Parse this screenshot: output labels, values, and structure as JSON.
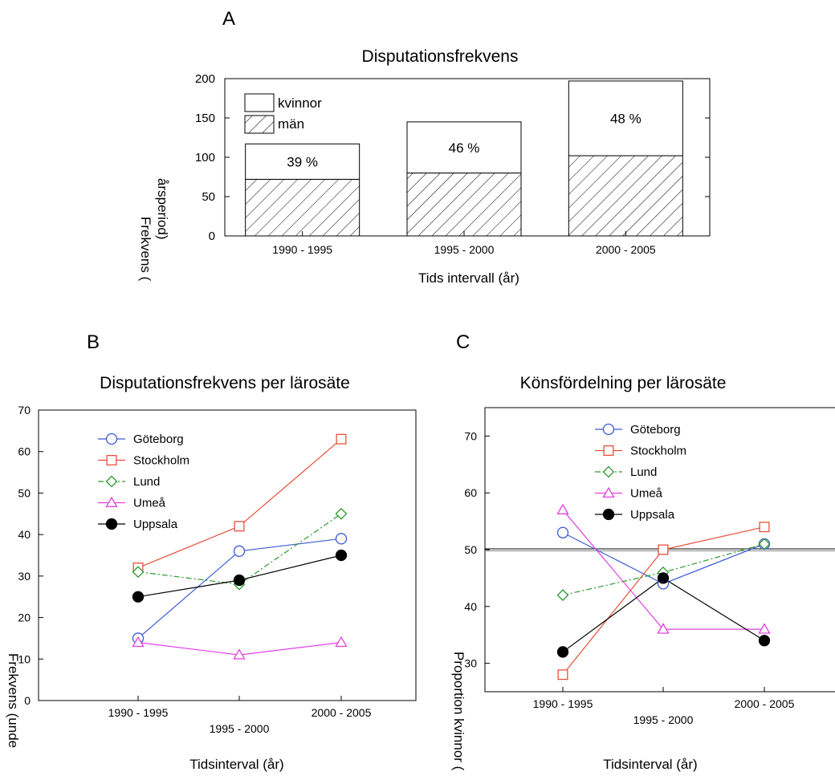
{
  "panel_labels": {
    "a": "A",
    "b": "B",
    "c": "C"
  },
  "chart_data": [
    {
      "type": "bar",
      "stacked": true,
      "title": "Disputationsfrekvens",
      "xlabel": "Tids intervall (år)",
      "ylabel": "Frekvens (",
      "ylabel_line2": "årsperiod)",
      "categories": [
        "1990 - 1995",
        "1995 - 2000",
        "2000 - 2005"
      ],
      "series": [
        {
          "name": "män",
          "values": [
            72,
            80,
            102
          ],
          "fill": "hatch"
        },
        {
          "name": "kvinnor",
          "values": [
            45,
            65,
            95
          ],
          "fill": "white"
        }
      ],
      "bar_labels": [
        "39 %",
        "46 %",
        "48 %"
      ],
      "ylim": [
        0,
        200
      ],
      "yticks": [
        0,
        50,
        100,
        150,
        200
      ],
      "legend_position": "top-left",
      "grid": false
    },
    {
      "type": "line",
      "title": "Disputationsfrekvens per lärosäte",
      "xlabel": "Tidsinterval (år)",
      "ylabel": "Frekvens (unde",
      "categories": [
        "1990 - 1995",
        "1995 - 2000",
        "2000 - 2005"
      ],
      "series": [
        {
          "name": "Göteborg",
          "values": [
            15,
            36,
            39
          ],
          "color": "#3a5bd4",
          "marker": "circle-open",
          "dash": "solid"
        },
        {
          "name": "Stockholm",
          "values": [
            32,
            42,
            63
          ],
          "color": "#e8503a",
          "marker": "square-open",
          "dash": "solid"
        },
        {
          "name": "Lund",
          "values": [
            31,
            28,
            45
          ],
          "color": "#2a9a2a",
          "marker": "diamond-open",
          "dash": "dashdot"
        },
        {
          "name": "Umeå",
          "values": [
            14,
            11,
            14
          ],
          "color": "#e040e0",
          "marker": "triangle-open",
          "dash": "solid"
        },
        {
          "name": "Uppsala",
          "values": [
            25,
            29,
            35
          ],
          "color": "#000000",
          "marker": "circle-filled",
          "dash": "solid"
        }
      ],
      "ylim": [
        0,
        70
      ],
      "yticks": [
        0,
        10,
        20,
        30,
        40,
        50,
        60,
        70
      ],
      "legend_position": "top-left",
      "grid": false
    },
    {
      "type": "line",
      "title": "Könsfördelning per lärosäte",
      "xlabel": "Tidsinterval (år)",
      "ylabel": "Proportion kvinnor (",
      "categories": [
        "1990 - 1995",
        "1995 - 2000",
        "2000 - 2005"
      ],
      "series": [
        {
          "name": "Göteborg",
          "values": [
            53,
            44,
            51
          ],
          "color": "#3a5bd4",
          "marker": "circle-open",
          "dash": "solid"
        },
        {
          "name": "Stockholm",
          "values": [
            28,
            50,
            54
          ],
          "color": "#e8503a",
          "marker": "square-open",
          "dash": "solid"
        },
        {
          "name": "Lund",
          "values": [
            42,
            46,
            51
          ],
          "color": "#2a9a2a",
          "marker": "diamond-open",
          "dash": "dashdot"
        },
        {
          "name": "Umeå",
          "values": [
            57,
            36,
            36
          ],
          "color": "#e040e0",
          "marker": "triangle-open",
          "dash": "solid"
        },
        {
          "name": "Uppsala",
          "values": [
            32,
            45,
            34
          ],
          "color": "#000000",
          "marker": "circle-filled",
          "dash": "solid"
        }
      ],
      "reference_line": 50,
      "ylim": [
        25,
        75
      ],
      "yticks": [
        30,
        40,
        50,
        60,
        70
      ],
      "legend_position": "top-center",
      "grid": false
    }
  ]
}
